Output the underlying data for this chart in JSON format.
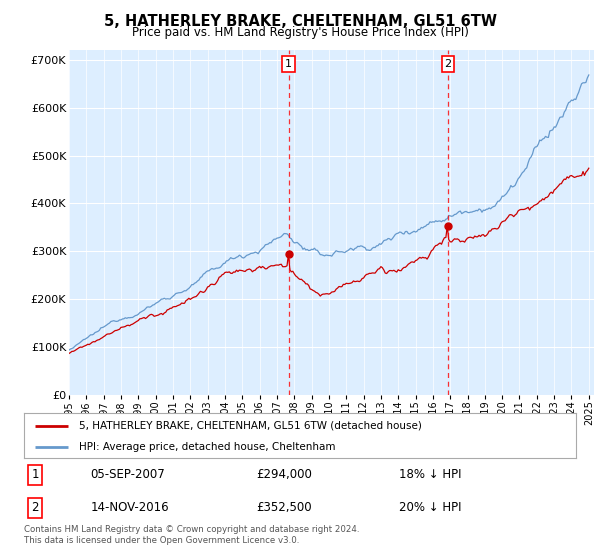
{
  "title": "5, HATHERLEY BRAKE, CHELTENHAM, GL51 6TW",
  "subtitle": "Price paid vs. HM Land Registry's House Price Index (HPI)",
  "background_color": "#ffffff",
  "plot_bg_color": "#ddeeff",
  "ylim": [
    0,
    720000
  ],
  "yticks": [
    0,
    100000,
    200000,
    300000,
    400000,
    500000,
    600000,
    700000
  ],
  "ytick_labels": [
    "£0",
    "£100K",
    "£200K",
    "£300K",
    "£400K",
    "£500K",
    "£600K",
    "£700K"
  ],
  "year_start": 1995,
  "year_end": 2025,
  "purchase1_year": 2007.67,
  "purchase1_price": 294000,
  "purchase2_year": 2016.87,
  "purchase2_price": 352500,
  "purchase1_date": "05-SEP-2007",
  "purchase1_hpi_diff": "18% ↓ HPI",
  "purchase2_date": "14-NOV-2016",
  "purchase2_hpi_diff": "20% ↓ HPI",
  "line_color_property": "#cc0000",
  "line_color_hpi": "#6699cc",
  "legend_property": "5, HATHERLEY BRAKE, CHELTENHAM, GL51 6TW (detached house)",
  "legend_hpi": "HPI: Average price, detached house, Cheltenham",
  "footer": "Contains HM Land Registry data © Crown copyright and database right 2024.\nThis data is licensed under the Open Government Licence v3.0."
}
